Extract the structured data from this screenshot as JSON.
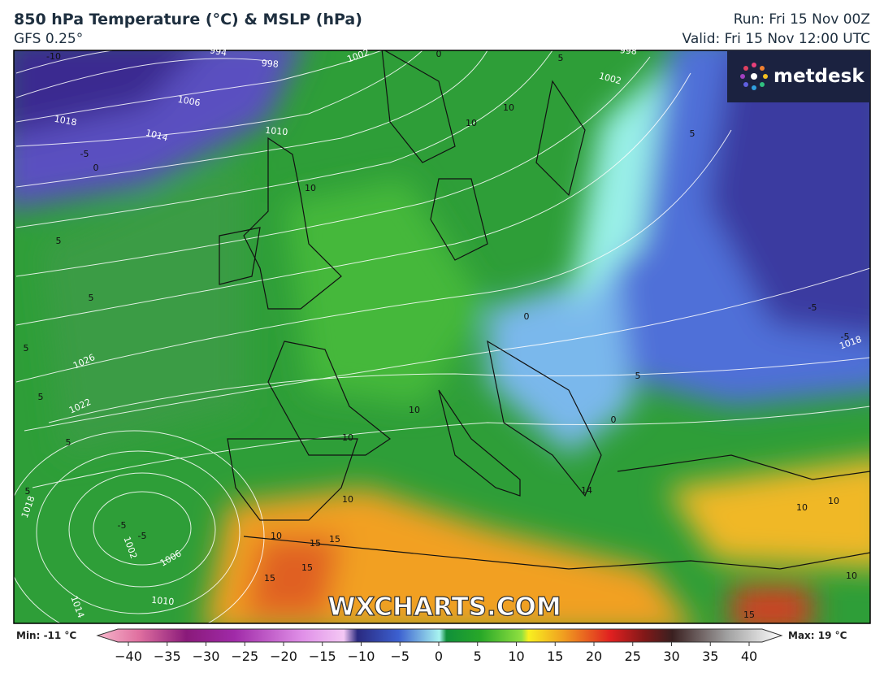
{
  "header": {
    "title": "850 hPa Temperature (°C) & MSLP (hPa)",
    "subtitle": "GFS 0.25°",
    "run": "Run: Fri 15 Nov 00Z",
    "valid": "Valid: Fri 15 Nov 12:00 UTC"
  },
  "logo": "metdesk",
  "watermark": "WXCHARTS.COM",
  "isobar_labels": [
    "994",
    "998",
    "1002",
    "1006",
    "1010",
    "1014",
    "1018",
    "998",
    "1002",
    "1026",
    "1022",
    "1018",
    "1002",
    "1006",
    "1010",
    "1014",
    "1018"
  ],
  "temperature_labels": [
    "-10",
    "-5",
    "0",
    "5",
    "5",
    "5",
    "5",
    "5",
    "5",
    "-5",
    "-5",
    "10",
    "10",
    "10",
    "10",
    "10",
    "10",
    "10",
    "15",
    "15",
    "15",
    "15",
    "0",
    "5",
    "-5",
    "-5",
    "5",
    "0",
    "0",
    "14",
    "10",
    "10",
    "10",
    "15",
    "5"
  ],
  "colorbar": {
    "min_label": "Min: -11 °C",
    "max_label": "Max: 19 °C",
    "ticks": [
      "−40",
      "−35",
      "−30",
      "−25",
      "−20",
      "−15",
      "−10",
      "−5",
      "0",
      "5",
      "10",
      "15",
      "20",
      "25",
      "30",
      "35",
      "40"
    ]
  }
}
